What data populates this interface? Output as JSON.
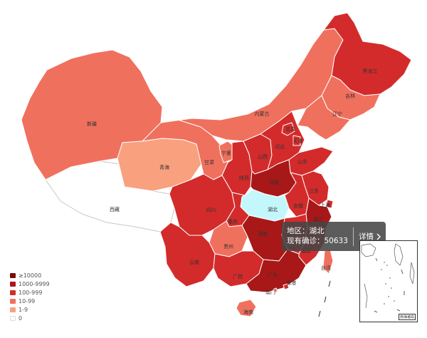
{
  "colors": {
    "ge10000": "#7a0a0a",
    "r1000_9999": "#a81818",
    "r100_999": "#d32b2b",
    "r10_99": "#f0705e",
    "r1_9": "#f9a07f",
    "r0": "#ffffff",
    "highlight": "#c4f7fb"
  },
  "legend": [
    {
      "label": "≥10000",
      "color_key": "ge10000"
    },
    {
      "label": "1000-9999",
      "color_key": "r1000_9999"
    },
    {
      "label": "100-999",
      "color_key": "r100_999"
    },
    {
      "label": "10-99",
      "color_key": "r10_99"
    },
    {
      "label": "1-9",
      "color_key": "r1_9"
    },
    {
      "label": "0",
      "color_key": "r0"
    }
  ],
  "provinces": {
    "heilongjiang": "黑龙江",
    "jilin": "吉林",
    "liaoning": "辽宁",
    "neimenggu": "内蒙古",
    "xinjiang": "新疆",
    "xizang": "西藏",
    "qinghai": "青海",
    "gansu": "甘肃",
    "ningxia": "宁夏",
    "shanxi1": "陕西",
    "shanxi2": "山西",
    "hebei": "河北",
    "beijing": "北京",
    "tianjin": "天津",
    "shandong": "山东",
    "henan": "河南",
    "jiangsu": "江苏",
    "anhui": "安徽",
    "hubei": "湖北",
    "sichuan": "四川",
    "chongqing": "重庆",
    "guizhou": "贵州",
    "yunnan": "云南",
    "hunan": "湖南",
    "jiangxi": "江西",
    "zhejiang": "浙江",
    "shanghai": "上海",
    "fujian": "福建",
    "guangxi": "广西",
    "guangdong": "广东",
    "hainan": "海南",
    "taiwan": "台湾",
    "xianggang": "香港",
    "aomen": "澳门"
  },
  "tooltip": {
    "region_line": "地区：湖北",
    "confirmed_line": "现有确诊：50633",
    "detail_label": "详情"
  },
  "inset": {
    "label": "南海诸岛"
  }
}
